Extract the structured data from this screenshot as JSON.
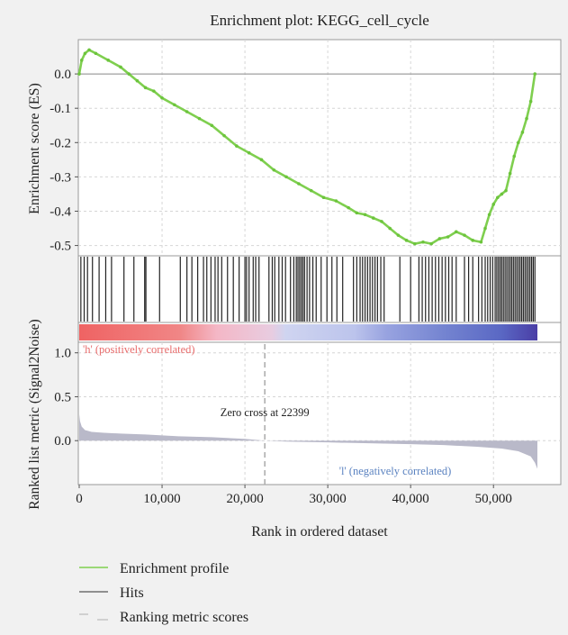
{
  "chart_data": {
    "type": "line",
    "title": "Enrichment plot: KEGG_cell_cycle",
    "xlabel": "Rank in ordered dataset",
    "xlim": [
      0,
      55300
    ],
    "x_ticks": [
      "0",
      "10,000",
      "20,000",
      "30,000",
      "40,000",
      "50,000"
    ],
    "x_tick_values": [
      0,
      10000,
      20000,
      30000,
      40000,
      50000
    ],
    "grid": true,
    "legend_position": "bottom",
    "legend": [
      "Enrichment profile",
      "Hits",
      "Ranking metric scores"
    ],
    "colors": {
      "enrichment": "#7fcf4f",
      "hits": "#222222",
      "metric": "#b9b9c9",
      "zero_line": "#888888",
      "background": "#f1f1f1",
      "panel": "#ffffff",
      "pos_label": "#e86b6b",
      "neg_label": "#5a82c0"
    },
    "enrichment_panel": {
      "ylabel": "Enrichment score (ES)",
      "ylim": [
        -0.53,
        0.1
      ],
      "y_ticks": [
        "0.0",
        "-0.1",
        "-0.2",
        "-0.3",
        "-0.4",
        "-0.5"
      ],
      "y_tick_values": [
        0.0,
        -0.1,
        -0.2,
        -0.3,
        -0.4,
        -0.5
      ],
      "series_name": "Enrichment profile",
      "x": [
        0,
        300,
        700,
        1200,
        2000,
        3500,
        5000,
        6000,
        7000,
        8000,
        9000,
        10000,
        11500,
        13000,
        14500,
        16000,
        17500,
        19000,
        20500,
        22000,
        23500,
        25000,
        26500,
        28000,
        29500,
        31000,
        32500,
        33500,
        34500,
        35500,
        36500,
        37500,
        38500,
        39500,
        40500,
        41500,
        42500,
        43500,
        44500,
        45500,
        46500,
        47500,
        48500,
        49000,
        49500,
        50000,
        50500,
        51000,
        51500,
        52000,
        52500,
        53000,
        53500,
        54000,
        54500,
        55000
      ],
      "y": [
        0.0,
        0.04,
        0.06,
        0.07,
        0.06,
        0.04,
        0.02,
        0.0,
        -0.02,
        -0.04,
        -0.05,
        -0.07,
        -0.09,
        -0.11,
        -0.13,
        -0.15,
        -0.18,
        -0.21,
        -0.23,
        -0.25,
        -0.28,
        -0.3,
        -0.32,
        -0.34,
        -0.36,
        -0.37,
        -0.39,
        -0.405,
        -0.41,
        -0.42,
        -0.43,
        -0.45,
        -0.47,
        -0.485,
        -0.495,
        -0.49,
        -0.495,
        -0.48,
        -0.475,
        -0.46,
        -0.47,
        -0.485,
        -0.49,
        -0.45,
        -0.41,
        -0.38,
        -0.36,
        -0.35,
        -0.34,
        -0.29,
        -0.24,
        -0.2,
        -0.17,
        -0.13,
        -0.08,
        0.0
      ]
    },
    "hits_panel": {
      "series_name": "Hits",
      "positions": [
        200,
        600,
        1000,
        1600,
        2400,
        3200,
        3900,
        5400,
        6600,
        7900,
        8050,
        9700,
        12200,
        13000,
        13600,
        14300,
        15000,
        15400,
        15900,
        16400,
        16750,
        17200,
        17900,
        18600,
        19300,
        20000,
        20200,
        20500,
        21000,
        21300,
        21700,
        22900,
        23300,
        23600,
        24100,
        24500,
        24900,
        25500,
        25900,
        26200,
        26400,
        26600,
        26800,
        27000,
        27200,
        27500,
        27800,
        28200,
        28600,
        29200,
        29900,
        30500,
        31100,
        31800,
        33100,
        33500,
        33900,
        34200,
        34500,
        34800,
        35100,
        35400,
        35700,
        36000,
        36400,
        36800,
        38700,
        40000,
        41000,
        41400,
        41800,
        42200,
        42600,
        43000,
        43400,
        43800,
        44200,
        44600,
        45000,
        45500,
        46500,
        47000,
        47500,
        48200,
        48600,
        49000,
        49300,
        49600,
        49900,
        50200,
        50400,
        50600,
        50800,
        51000,
        51200,
        51400,
        51600,
        51800,
        52000,
        52200,
        52400,
        52600,
        52800,
        53000,
        53200,
        53400,
        53600,
        53800,
        54000,
        54200,
        54400,
        54600,
        54800,
        55000
      ]
    },
    "metric_panel": {
      "ylabel": "Ranked list metric (Signal2Noise)",
      "ylim": [
        -0.5,
        1.12
      ],
      "y_ticks": [
        "1.0",
        "0.5",
        "0.0"
      ],
      "y_tick_values": [
        1.0,
        0.5,
        0.0
      ],
      "series_name": "Ranking metric scores",
      "x": [
        0,
        100,
        300,
        700,
        1500,
        3000,
        5000,
        8000,
        12000,
        16000,
        20000,
        22399,
        25000,
        30000,
        35000,
        40000,
        44000,
        48000,
        51000,
        53000,
        54500,
        55000,
        55300
      ],
      "y": [
        0.3,
        0.22,
        0.16,
        0.12,
        0.1,
        0.09,
        0.08,
        0.07,
        0.05,
        0.04,
        0.02,
        0.0,
        -0.01,
        -0.02,
        -0.03,
        -0.04,
        -0.05,
        -0.07,
        -0.09,
        -0.12,
        -0.18,
        -0.25,
        -0.32
      ],
      "zero_cross_label": "Zero cross at 22399",
      "zero_cross": 22399,
      "pos_label": "'h' (positively correlated)",
      "neg_label": "'l' (negatively correlated)"
    }
  }
}
